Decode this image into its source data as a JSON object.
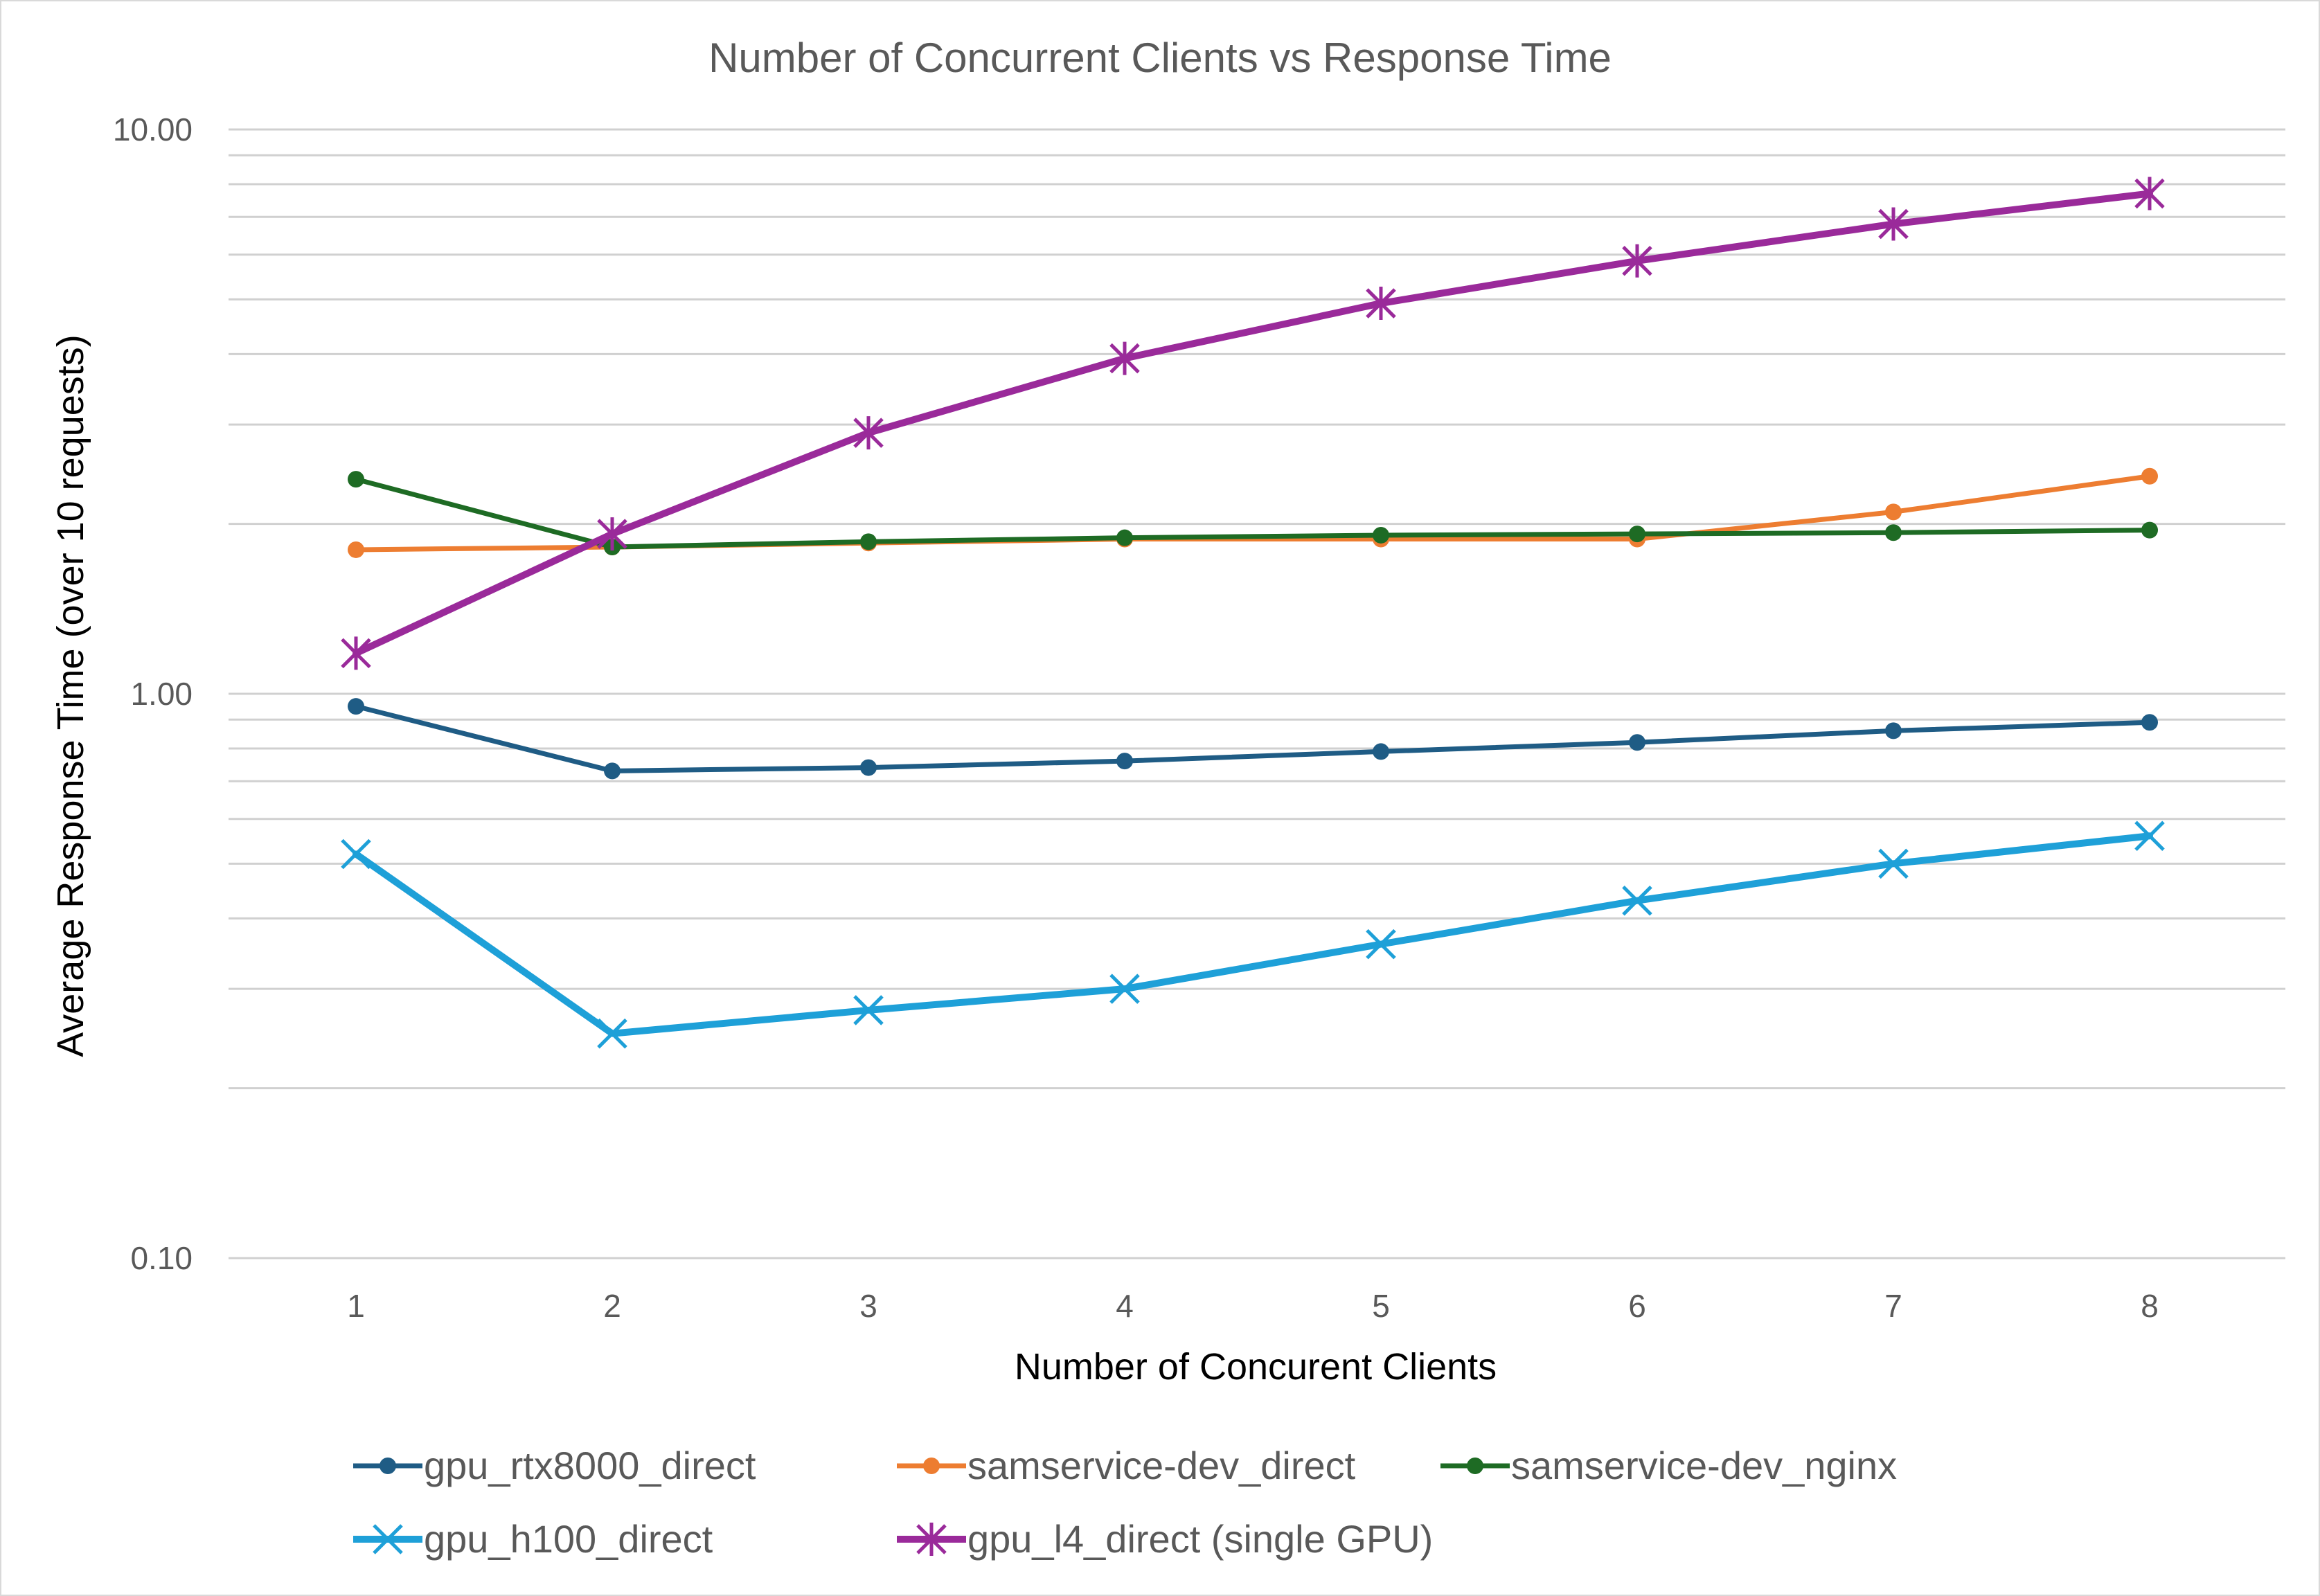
{
  "chart_data": {
    "type": "line",
    "title": "Number of Concurrent Clients vs Response Time",
    "xlabel": "Number of Concurent Clients",
    "ylabel": "Average Response Time  (over 10 requests)",
    "y_scale": "log",
    "ylim": [
      0.1,
      10
    ],
    "grid": "horizontal major and minor gridlines",
    "legend_position": "bottom",
    "categories": [
      "1",
      "2",
      "3",
      "4",
      "5",
      "6",
      "7",
      "8"
    ],
    "y_tick_labels": [
      "10.00",
      "1.00",
      "0.10"
    ],
    "y_tick_values": [
      10,
      1,
      0.1
    ],
    "series": [
      {
        "name": "gpu_rtx8000_direct",
        "color": "#1f5c85",
        "marker": "circle",
        "values": [
          0.95,
          0.73,
          0.74,
          0.76,
          0.79,
          0.82,
          0.86,
          0.89
        ]
      },
      {
        "name": "samservice-dev_direct",
        "color": "#ed7d31",
        "marker": "circle",
        "values": [
          1.8,
          1.82,
          1.85,
          1.88,
          1.88,
          1.88,
          2.1,
          2.43
        ]
      },
      {
        "name": "samservice-dev_nginx",
        "color": "#1e6b24",
        "marker": "circle",
        "values": [
          2.4,
          1.82,
          1.86,
          1.89,
          1.91,
          1.92,
          1.93,
          1.95
        ]
      },
      {
        "name": "gpu_h100_direct",
        "color": "#1ea0d8",
        "marker": "x",
        "values": [
          0.52,
          0.25,
          0.275,
          0.3,
          0.36,
          0.43,
          0.5,
          0.56
        ]
      },
      {
        "name": "gpu_l4_direct (single GPU)",
        "color": "#9a2a9a",
        "marker": "star",
        "values": [
          1.18,
          1.92,
          2.9,
          3.93,
          4.92,
          5.85,
          6.8,
          7.7
        ]
      }
    ]
  }
}
